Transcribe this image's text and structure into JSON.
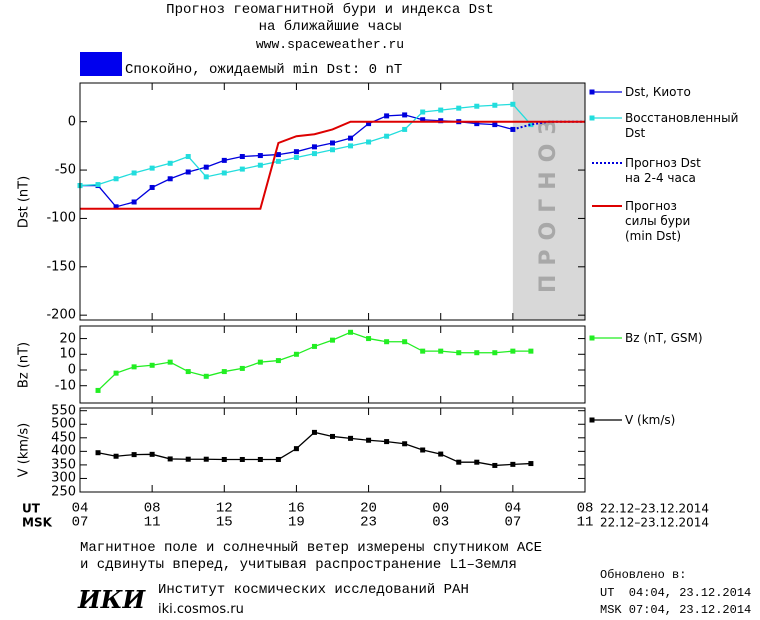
{
  "header": {
    "title": "Прогноз геомагнитной бури и индекса Dst",
    "subtitle": "на ближайшие часы",
    "url": "www.spaceweather.ru",
    "status": "Спокойно, ожидаемый min Dst: 0 nT",
    "status_color": "#0000ee"
  },
  "chart_data": [
    {
      "type": "line",
      "ylabel": "Dst (nT)",
      "xlim": [
        0,
        28
      ],
      "ylim": [
        -205,
        40
      ],
      "yticks": [
        0,
        -50,
        -100,
        -150,
        -200
      ],
      "forecast_region": {
        "from": 24,
        "to": 28,
        "label": "ПРОГНОЗ",
        "color": "#d8d8d8"
      },
      "series": [
        {
          "name": "Dst, Киото",
          "color": "#0000dd",
          "marker": "square",
          "x": [
            0,
            1,
            2,
            3,
            4,
            5,
            6,
            7,
            8,
            9,
            10,
            11,
            12,
            13,
            14,
            15,
            16,
            17,
            18,
            19,
            20,
            21,
            22,
            23,
            24
          ],
          "values": [
            -66,
            -66,
            -88,
            -83,
            -68,
            -59,
            -52,
            -47,
            -40,
            -36,
            -35,
            -34,
            -31,
            -26,
            -22,
            -17,
            -2,
            6,
            7,
            2,
            1,
            0,
            -2,
            -3,
            -8
          ]
        },
        {
          "name": "Восстановленный\nDst",
          "color": "#22dddd",
          "marker": "square",
          "x": [
            0,
            1,
            2,
            3,
            4,
            5,
            6,
            7,
            8,
            9,
            10,
            11,
            12,
            13,
            14,
            15,
            16,
            17,
            18,
            19,
            20,
            21,
            22,
            23,
            24,
            25
          ],
          "values": [
            -66,
            -65,
            -59,
            -53,
            -48,
            -43,
            -36,
            -57,
            -53,
            -49,
            -45,
            -41,
            -37,
            -33,
            -29,
            -25,
            -21,
            -15,
            -8,
            10,
            12,
            14,
            16,
            17,
            18,
            -3
          ]
        },
        {
          "name": "Прогноз Dst\nна 2-4 часа",
          "color": "#0000dd",
          "dash": true,
          "x": [
            24,
            25,
            26,
            28
          ],
          "values": [
            -8,
            -3,
            0,
            0
          ]
        },
        {
          "name": "Прогноз\nсилы бури\n(min Dst)",
          "color": "#dd0000",
          "x": [
            0,
            10,
            11,
            12,
            13,
            14,
            15,
            28
          ],
          "values": [
            -90,
            -90,
            -22,
            -15,
            -13,
            -8,
            0,
            0
          ]
        }
      ]
    },
    {
      "type": "line",
      "ylabel": "Bz (nT)",
      "xlim": [
        0,
        28
      ],
      "ylim": [
        -21,
        28
      ],
      "yticks": [
        20,
        10,
        0,
        -10
      ],
      "series": [
        {
          "name": "Bz (nT, GSM)",
          "color": "#22ee22",
          "marker": "square",
          "x": [
            1,
            2,
            3,
            4,
            5,
            6,
            7,
            8,
            9,
            10,
            11,
            12,
            13,
            14,
            15,
            16,
            17,
            18,
            19,
            20,
            21,
            22,
            23,
            24,
            25
          ],
          "values": [
            -13,
            -2,
            2,
            3,
            5,
            -1,
            -4,
            -1,
            1,
            5,
            6,
            10,
            15,
            19,
            24,
            20,
            18,
            18,
            12,
            12,
            11,
            11,
            11,
            12,
            12
          ]
        }
      ]
    },
    {
      "type": "line",
      "ylabel": "V (km/s)",
      "xlim": [
        0,
        28
      ],
      "ylim": [
        250,
        560
      ],
      "yticks": [
        550,
        500,
        450,
        400,
        350,
        300,
        250
      ],
      "xticks": [
        {
          "value": 0,
          "label": "04"
        },
        {
          "value": 4,
          "label": "08"
        },
        {
          "value": 8,
          "label": "12"
        },
        {
          "value": 12,
          "label": "16"
        },
        {
          "value": 16,
          "label": "20"
        },
        {
          "value": 20,
          "label": "00"
        },
        {
          "value": 24,
          "label": "04"
        },
        {
          "value": 28,
          "label": "08"
        }
      ],
      "xticks_msk": [
        {
          "value": 0,
          "label": "07"
        },
        {
          "value": 4,
          "label": "11"
        },
        {
          "value": 8,
          "label": "15"
        },
        {
          "value": 12,
          "label": "19"
        },
        {
          "value": 16,
          "label": "23"
        },
        {
          "value": 20,
          "label": "03"
        },
        {
          "value": 24,
          "label": "07"
        },
        {
          "value": 28,
          "label": "11"
        }
      ],
      "ut_label": "UT",
      "msk_label": "MSK",
      "range_ut": "22.12–23.12.2014",
      "range_msk": "22.12–23.12.2014",
      "series": [
        {
          "name": "V (km/s)",
          "color": "#000000",
          "marker": "square",
          "x": [
            1,
            2,
            3,
            4,
            5,
            6,
            7,
            8,
            9,
            10,
            11,
            12,
            13,
            14,
            15,
            16,
            17,
            18,
            19,
            20,
            21,
            22,
            23,
            24,
            25
          ],
          "values": [
            395,
            382,
            388,
            389,
            372,
            371,
            371,
            370,
            370,
            370,
            370,
            410,
            470,
            455,
            448,
            441,
            436,
            428,
            405,
            390,
            360,
            360,
            348,
            352,
            355
          ]
        }
      ]
    }
  ],
  "footer": {
    "note": "Магнитное поле и солнечный ветер измерены спутником ACE\nи сдвинуты вперед, учитывая распространение L1–Земля",
    "logo": "ИКИ",
    "institute": "Институт космических исследований РАН",
    "site": "iki.cosmos.ru",
    "updated": "Обновлено в:",
    "updated_ut": "UT  04:04, 23.12.2014",
    "updated_msk": "MSK 07:04, 23.12.2014"
  }
}
